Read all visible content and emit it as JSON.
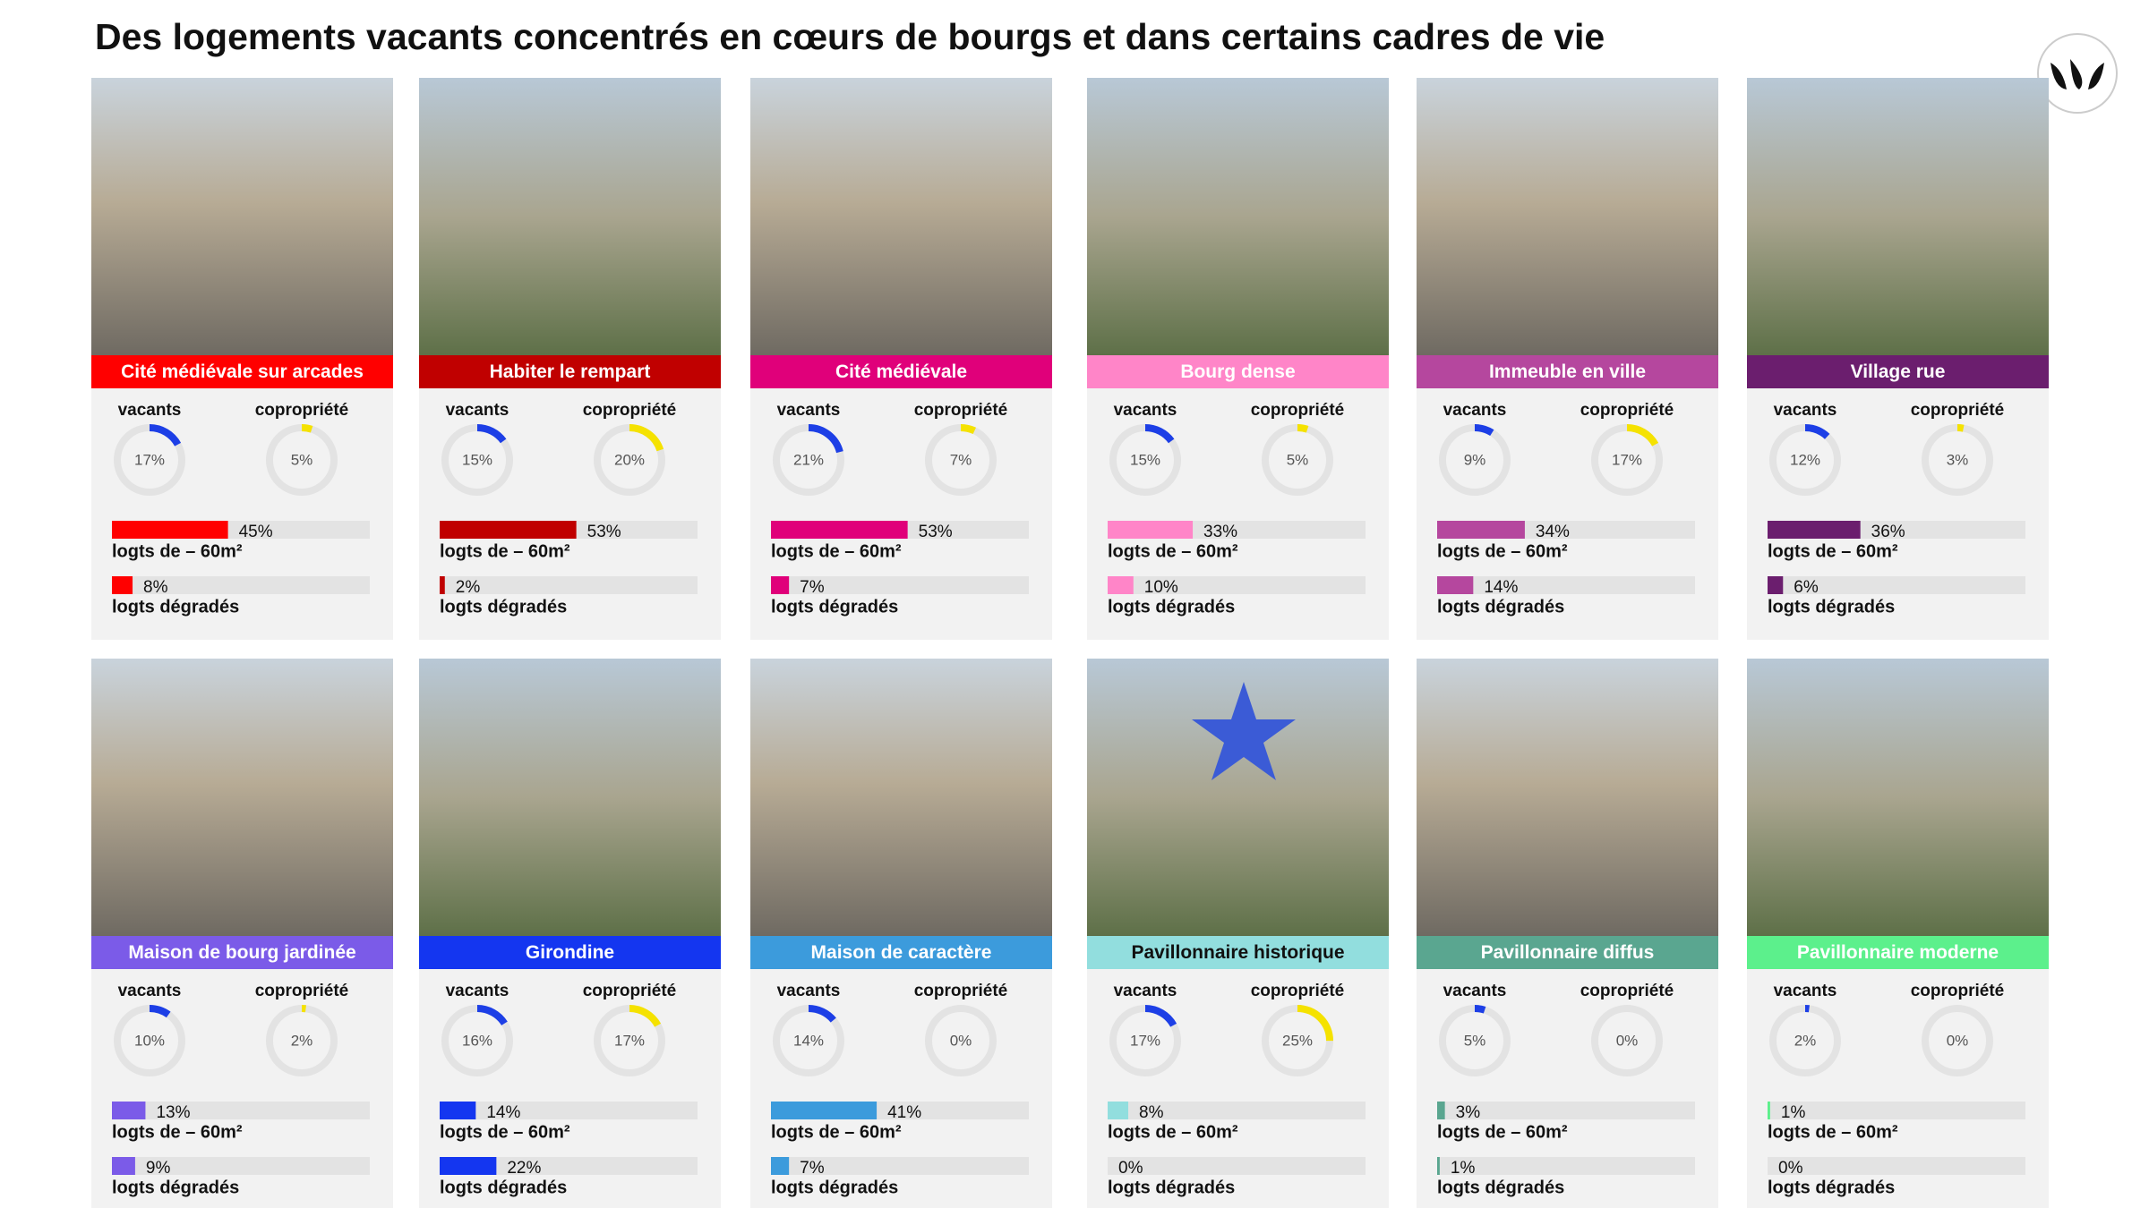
{
  "header": {
    "title": "Des logements vacants concentrés en cœurs de bourgs et dans certains cadres de vie"
  },
  "metric_labels": [
    "vacants",
    "copropriété",
    "logts de – 60m²",
    "logts dégradés"
  ],
  "donut_colors": [
    "#1d3fe6",
    "#f5e200"
  ],
  "cards": [
    {
      "title": "Cité médiévale sur arcades",
      "color": "#ff0000",
      "title_color": "#ffffff",
      "values": [
        17,
        5,
        45,
        8
      ],
      "value_labels": [
        "17%",
        "5%",
        "45%",
        "8%"
      ]
    },
    {
      "title": "Habiter le rempart",
      "color": "#c00000",
      "title_color": "#ffffff",
      "values": [
        15,
        20,
        53,
        2
      ],
      "value_labels": [
        "15%",
        "20%",
        "53%",
        "2%"
      ]
    },
    {
      "title": "Cité médiévale",
      "color": "#e0007a",
      "title_color": "#ffffff",
      "values": [
        21,
        7,
        53,
        7
      ],
      "value_labels": [
        "21%",
        "7%",
        "53%",
        "7%"
      ]
    },
    {
      "title": "Bourg dense",
      "color": "#ff85c8",
      "title_color": "#ffffff",
      "values": [
        15,
        5,
        33,
        10
      ],
      "value_labels": [
        "15%",
        "5%",
        "33%",
        "10%"
      ]
    },
    {
      "title": "Immeuble en ville",
      "color": "#b5479e",
      "title_color": "#ffffff",
      "values": [
        9,
        17,
        34,
        14
      ],
      "value_labels": [
        "9%",
        "17%",
        "34%",
        "14%"
      ]
    },
    {
      "title": "Village rue",
      "color": "#6b1e6e",
      "title_color": "#ffffff",
      "values": [
        12,
        3,
        36,
        6
      ],
      "value_labels": [
        "12%",
        "3%",
        "36%",
        "6%"
      ]
    },
    {
      "title": "Maison de bourg jardinée",
      "color": "#7b5be8",
      "title_color": "#ffffff",
      "values": [
        10,
        2,
        13,
        9
      ],
      "value_labels": [
        "10%",
        "2%",
        "13%",
        "9%"
      ]
    },
    {
      "title": "Girondine",
      "color": "#1436f0",
      "title_color": "#ffffff",
      "values": [
        16,
        17,
        14,
        22
      ],
      "value_labels": [
        "16%",
        "17%",
        "14%",
        "22%"
      ]
    },
    {
      "title": "Maison de caractère",
      "color": "#3c9bdc",
      "title_color": "#ffffff",
      "values": [
        14,
        0,
        41,
        7
      ],
      "value_labels": [
        "14%",
        "0%",
        "41%",
        "7%"
      ]
    },
    {
      "title": "Pavillonnaire historique",
      "color": "#92dede",
      "title_color": "#111111",
      "values": [
        17,
        25,
        8,
        0
      ],
      "value_labels": [
        "17%",
        "25%",
        "8%",
        "0%"
      ]
    },
    {
      "title": "Pavillonnaire diffus",
      "color": "#5aa690",
      "title_color": "#ffffff",
      "values": [
        5,
        0,
        3,
        1
      ],
      "value_labels": [
        "5%",
        "0%",
        "3%",
        "1%"
      ]
    },
    {
      "title": "Pavillonnaire moderne",
      "color": "#5cf08c",
      "title_color": "#ffffff",
      "values": [
        2,
        0,
        1,
        0
      ],
      "value_labels": [
        "2%",
        "0%",
        "1%",
        "0%"
      ]
    }
  ]
}
